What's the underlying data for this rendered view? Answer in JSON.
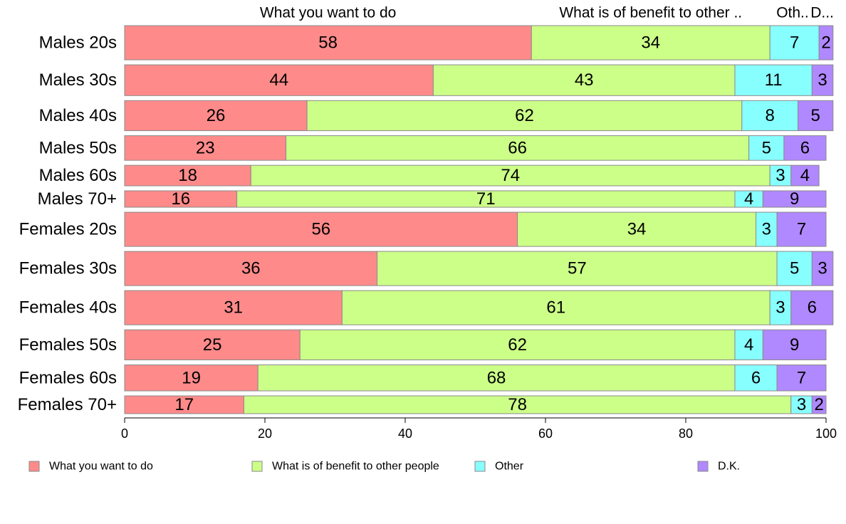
{
  "chart_data": {
    "type": "bar",
    "orientation": "horizontal",
    "stacked": true,
    "categories": [
      "Males 20s",
      "Males 30s",
      "Males 40s",
      "Males 50s",
      "Males 60s",
      "Males 70+",
      "Females 20s",
      "Females 30s",
      "Females 40s",
      "Females 50s",
      "Females 60s",
      "Females 70+"
    ],
    "series": [
      {
        "name": "What you want to do",
        "color": "#FF8A8A",
        "values": [
          58,
          44,
          26,
          23,
          18,
          16,
          56,
          36,
          31,
          25,
          19,
          17
        ]
      },
      {
        "name": "What is of benefit to other people",
        "color": "#CCFF88",
        "values": [
          34,
          43,
          62,
          66,
          74,
          71,
          34,
          57,
          61,
          62,
          68,
          78
        ]
      },
      {
        "name": "Other",
        "color": "#88FFFF",
        "values": [
          7,
          11,
          8,
          5,
          3,
          4,
          3,
          5,
          3,
          4,
          6,
          3
        ]
      },
      {
        "name": "D.K.",
        "color": "#B088FF",
        "values": [
          2,
          3,
          5,
          6,
          4,
          9,
          7,
          3,
          6,
          9,
          7,
          2
        ]
      }
    ],
    "relative_bar_heights": [
      1.0,
      0.9,
      0.88,
      0.72,
      0.6,
      0.48,
      1.0,
      1.0,
      1.0,
      0.88,
      0.76,
      0.52
    ],
    "top_labels": [
      "What you want to do",
      "What is of benefit to other ..",
      "Oth..",
      "D..."
    ],
    "xlim": [
      0,
      100
    ],
    "xticks": [
      "0",
      "20",
      "40",
      "60",
      "80",
      "100"
    ],
    "legend_position": "bottom",
    "grid": false,
    "title": "",
    "xlabel": "",
    "ylabel": ""
  }
}
